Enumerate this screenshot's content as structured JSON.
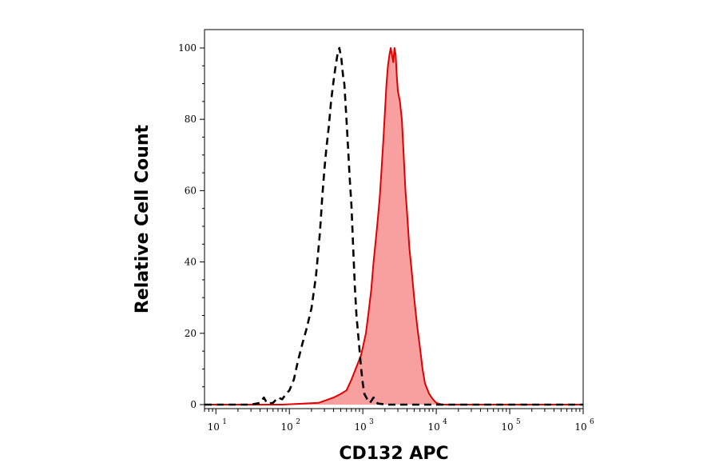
{
  "chart_data": {
    "type": "area",
    "xlabel": "CD132 APC",
    "ylabel": "Relative Cell Count",
    "x_scale": "log",
    "xlim": [
      7,
      1000000
    ],
    "ylim": [
      0,
      100
    ],
    "x_ticks": [
      {
        "base": "10",
        "exp": "1",
        "value": 10
      },
      {
        "base": "10",
        "exp": "2",
        "value": 100
      },
      {
        "base": "10",
        "exp": "3",
        "value": 1000
      },
      {
        "base": "10",
        "exp": "4",
        "value": 10000
      },
      {
        "base": "10",
        "exp": "5",
        "value": 100000
      },
      {
        "base": "10",
        "exp": "6",
        "value": 1000000
      }
    ],
    "y_ticks": [
      "0",
      "20",
      "40",
      "60",
      "80",
      "100"
    ],
    "grid": false,
    "legend": "none",
    "series": [
      {
        "style": "dashed",
        "color": "#000000",
        "fill": "none",
        "points": [
          [
            7,
            0
          ],
          [
            30,
            0
          ],
          [
            40,
            0.5
          ],
          [
            45,
            2
          ],
          [
            50,
            0.3
          ],
          [
            60,
            0.5
          ],
          [
            70,
            2
          ],
          [
            80,
            1.5
          ],
          [
            90,
            3
          ],
          [
            100,
            4
          ],
          [
            115,
            7
          ],
          [
            130,
            12
          ],
          [
            150,
            17
          ],
          [
            170,
            21
          ],
          [
            200,
            27
          ],
          [
            230,
            36
          ],
          [
            260,
            48
          ],
          [
            280,
            58
          ],
          [
            300,
            66
          ],
          [
            320,
            72
          ],
          [
            345,
            78
          ],
          [
            370,
            85
          ],
          [
            395,
            90
          ],
          [
            420,
            94
          ],
          [
            450,
            98
          ],
          [
            480,
            100
          ],
          [
            510,
            97
          ],
          [
            540,
            92
          ],
          [
            560,
            90
          ],
          [
            600,
            80
          ],
          [
            630,
            72
          ],
          [
            660,
            64
          ],
          [
            700,
            56
          ],
          [
            740,
            44
          ],
          [
            780,
            33
          ],
          [
            820,
            25
          ],
          [
            880,
            18
          ],
          [
            950,
            10
          ],
          [
            1000,
            6
          ],
          [
            1050,
            3
          ],
          [
            1150,
            1.5
          ],
          [
            1250,
            0.5
          ],
          [
            1400,
            2
          ],
          [
            1600,
            0.3
          ],
          [
            2200,
            0
          ],
          [
            1000000,
            0
          ]
        ]
      },
      {
        "style": "solid",
        "color": "#e00000",
        "fill": "#f8a0a0",
        "points": [
          [
            7,
            0
          ],
          [
            80,
            0
          ],
          [
            250,
            0.5
          ],
          [
            400,
            2
          ],
          [
            500,
            3
          ],
          [
            600,
            4
          ],
          [
            700,
            7
          ],
          [
            800,
            10
          ],
          [
            950,
            14
          ],
          [
            1100,
            20
          ],
          [
            1200,
            26
          ],
          [
            1300,
            32
          ],
          [
            1400,
            40
          ],
          [
            1500,
            46
          ],
          [
            1600,
            52
          ],
          [
            1700,
            58
          ],
          [
            1800,
            66
          ],
          [
            1900,
            74
          ],
          [
            2000,
            82
          ],
          [
            2100,
            90
          ],
          [
            2200,
            95
          ],
          [
            2300,
            98
          ],
          [
            2400,
            100
          ],
          [
            2500,
            98
          ],
          [
            2600,
            96
          ],
          [
            2700,
            100
          ],
          [
            2800,
            98
          ],
          [
            2900,
            92
          ],
          [
            3000,
            88
          ],
          [
            3200,
            85
          ],
          [
            3400,
            80
          ],
          [
            3600,
            70
          ],
          [
            3800,
            60
          ],
          [
            4000,
            54
          ],
          [
            4300,
            44
          ],
          [
            4600,
            38
          ],
          [
            5000,
            30
          ],
          [
            5500,
            22
          ],
          [
            6000,
            16
          ],
          [
            6500,
            10
          ],
          [
            7000,
            6
          ],
          [
            8000,
            3
          ],
          [
            9000,
            1.5
          ],
          [
            10000,
            0.5
          ],
          [
            12000,
            0
          ],
          [
            1000000,
            0
          ]
        ]
      }
    ]
  }
}
